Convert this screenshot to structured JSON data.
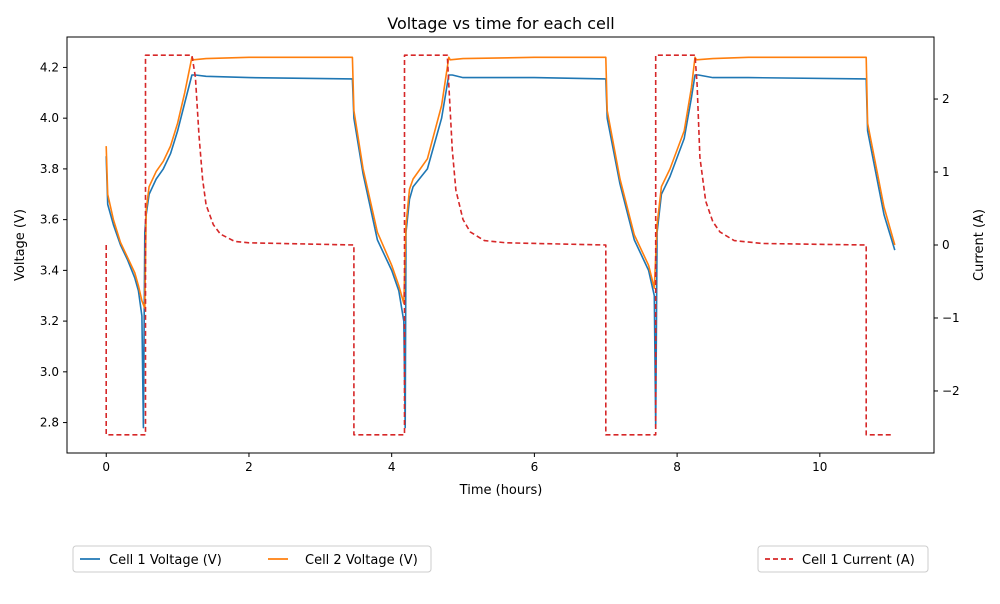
{
  "chart_data": {
    "type": "line",
    "title": "Voltage vs time for each cell",
    "xlabel": "Time (hours)",
    "ylabel": "Voltage (V)",
    "y2label": "Current (A)",
    "xlim": [
      -0.55,
      11.6
    ],
    "ylim": [
      2.68,
      4.32
    ],
    "y2lim": [
      -2.85,
      2.85
    ],
    "x_ticks": [
      0,
      2,
      4,
      6,
      8,
      10
    ],
    "y_ticks": [
      2.8,
      3.0,
      3.2,
      3.4,
      3.6,
      3.8,
      4.0,
      4.2
    ],
    "y2_ticks": [
      -2,
      -1,
      0,
      1,
      2
    ],
    "grid": false,
    "legend_left": [
      "Cell 1 Voltage (V)",
      "Cell 2 Voltage (V)"
    ],
    "legend_right": [
      "Cell 1 Current (A)"
    ],
    "colors": {
      "cell1": "#1f77b4",
      "cell2": "#ff7f0e",
      "current": "#d62728"
    },
    "series": [
      {
        "name": "Cell 1 Voltage (V)",
        "axis": "left",
        "x": [
          0,
          0.02,
          0.1,
          0.2,
          0.3,
          0.4,
          0.45,
          0.5,
          0.52,
          0.54,
          0.56,
          0.6,
          0.7,
          0.8,
          0.9,
          1.0,
          1.1,
          1.2,
          1.25,
          1.4,
          2.0,
          3.45,
          3.47,
          3.6,
          3.8,
          4.0,
          4.1,
          4.17,
          4.19,
          4.2,
          4.25,
          4.3,
          4.5,
          4.7,
          4.8,
          4.85,
          5.0,
          6.0,
          7.0,
          7.02,
          7.2,
          7.4,
          7.6,
          7.68,
          7.7,
          7.72,
          7.78,
          7.9,
          8.1,
          8.2,
          8.25,
          8.3,
          8.5,
          9.0,
          10.65,
          10.67,
          10.9,
          11.05
        ],
        "y": [
          3.85,
          3.66,
          3.58,
          3.5,
          3.44,
          3.37,
          3.32,
          3.22,
          2.78,
          3.55,
          3.62,
          3.7,
          3.76,
          3.8,
          3.86,
          3.95,
          4.06,
          4.17,
          4.17,
          4.165,
          4.16,
          4.155,
          4.0,
          3.78,
          3.52,
          3.4,
          3.32,
          3.2,
          2.78,
          3.55,
          3.68,
          3.73,
          3.8,
          4.0,
          4.17,
          4.17,
          4.16,
          4.16,
          4.155,
          4.0,
          3.74,
          3.52,
          3.4,
          3.3,
          2.78,
          3.55,
          3.7,
          3.77,
          3.92,
          4.08,
          4.17,
          4.17,
          4.16,
          4.16,
          4.155,
          3.95,
          3.62,
          3.48
        ]
      },
      {
        "name": "Cell 2 Voltage (V)",
        "axis": "left",
        "x": [
          0,
          0.02,
          0.1,
          0.2,
          0.3,
          0.4,
          0.45,
          0.5,
          0.54,
          0.56,
          0.6,
          0.7,
          0.8,
          0.9,
          1.0,
          1.1,
          1.2,
          1.22,
          1.4,
          2.0,
          3.45,
          3.47,
          3.6,
          3.8,
          4.0,
          4.1,
          4.17,
          4.2,
          4.25,
          4.3,
          4.5,
          4.7,
          4.8,
          4.82,
          5.0,
          6.0,
          7.0,
          7.02,
          7.2,
          7.4,
          7.6,
          7.68,
          7.72,
          7.78,
          7.9,
          8.1,
          8.2,
          8.25,
          8.27,
          8.5,
          9.0,
          10.65,
          10.67,
          10.9,
          11.05
        ],
        "y": [
          3.89,
          3.7,
          3.6,
          3.51,
          3.45,
          3.39,
          3.34,
          3.28,
          3.25,
          3.64,
          3.73,
          3.79,
          3.83,
          3.89,
          3.98,
          4.1,
          4.24,
          4.23,
          4.235,
          4.24,
          4.24,
          4.03,
          3.8,
          3.55,
          3.42,
          3.34,
          3.27,
          3.58,
          3.72,
          3.76,
          3.84,
          4.05,
          4.24,
          4.23,
          4.235,
          4.24,
          4.24,
          4.03,
          3.76,
          3.54,
          3.42,
          3.33,
          3.58,
          3.73,
          3.8,
          3.95,
          4.12,
          4.24,
          4.23,
          4.235,
          4.24,
          4.24,
          3.98,
          3.65,
          3.5
        ]
      },
      {
        "name": "Cell 1 Current (A)",
        "axis": "right",
        "dashed": true,
        "x": [
          0,
          0,
          0.55,
          0.55,
          0.6,
          1.2,
          1.25,
          1.3,
          1.35,
          1.4,
          1.5,
          1.6,
          1.8,
          2.0,
          3.47,
          3.47,
          4.18,
          4.18,
          4.78,
          4.8,
          4.85,
          4.9,
          5.0,
          5.1,
          5.3,
          5.6,
          7.0,
          7.0,
          7.7,
          7.7,
          8.25,
          8.28,
          8.32,
          8.4,
          8.5,
          8.6,
          8.8,
          9.2,
          10.65,
          10.65,
          11.0
        ],
        "y": [
          0,
          -2.6,
          -2.6,
          2.6,
          2.6,
          2.6,
          2.3,
          1.5,
          0.9,
          0.55,
          0.28,
          0.15,
          0.05,
          0.03,
          0,
          -2.6,
          -2.6,
          2.6,
          2.6,
          2.2,
          1.3,
          0.75,
          0.35,
          0.18,
          0.06,
          0.03,
          0,
          -2.6,
          -2.6,
          2.6,
          2.6,
          2.2,
          1.2,
          0.6,
          0.32,
          0.18,
          0.06,
          0.02,
          0,
          -2.6,
          -2.6
        ]
      }
    ]
  }
}
